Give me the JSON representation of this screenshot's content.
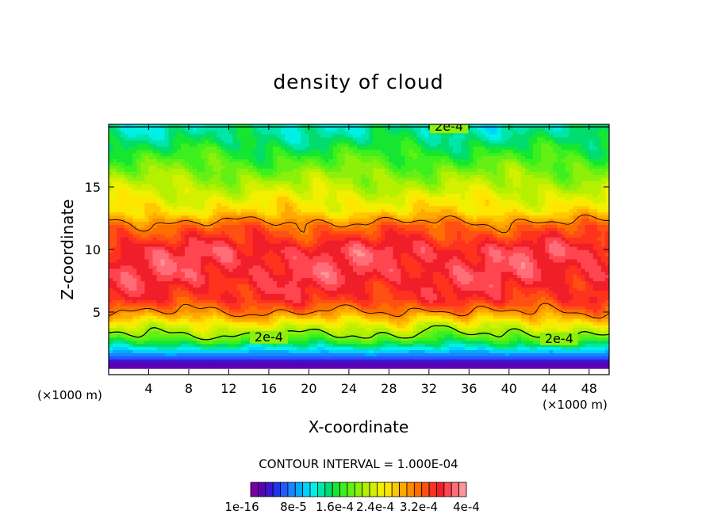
{
  "chart_data": {
    "type": "heatmap",
    "title": "density of cloud",
    "xlabel": "X-coordinate",
    "ylabel": "Z-coordinate",
    "x_unit_label": "(×1000 m)",
    "xlim": [
      0,
      50
    ],
    "ylim": [
      0,
      20
    ],
    "x_ticks": [
      4,
      8,
      12,
      16,
      20,
      24,
      28,
      32,
      36,
      40,
      44,
      48
    ],
    "y_ticks": [
      5,
      10,
      15
    ],
    "contour_interval_text": "CONTOUR INTERVAL = 1.000E-04",
    "contour_labels": [
      "2e-4",
      "2e-4",
      "2e-4"
    ],
    "colorbar_labels": [
      "1e-16",
      "8e-5",
      "1.6e-4",
      "2.4e-4",
      "3.2e-4",
      "4e-4"
    ],
    "colorbar_min": 0,
    "colorbar_max": 0.0004,
    "vertical_profile": [
      {
        "z": 0.5,
        "value": 1e-05
      },
      {
        "z": 1.0,
        "value": 3e-05
      },
      {
        "z": 1.5,
        "value": 7e-05
      },
      {
        "z": 2.0,
        "value": 0.00011
      },
      {
        "z": 2.5,
        "value": 0.00015
      },
      {
        "z": 3.0,
        "value": 0.00019
      },
      {
        "z": 4.0,
        "value": 0.00024
      },
      {
        "z": 5.0,
        "value": 0.0003
      },
      {
        "z": 6.0,
        "value": 0.00034
      },
      {
        "z": 8.0,
        "value": 0.00036
      },
      {
        "z": 10.0,
        "value": 0.00036
      },
      {
        "z": 12.0,
        "value": 0.00031
      },
      {
        "z": 13.0,
        "value": 0.00026
      },
      {
        "z": 15.0,
        "value": 0.00022
      },
      {
        "z": 17.0,
        "value": 0.00018
      },
      {
        "z": 19.0,
        "value": 0.00014
      },
      {
        "z": 20.0,
        "value": 0.00013
      }
    ],
    "grid": false,
    "legend": "colorbar-bottom"
  }
}
